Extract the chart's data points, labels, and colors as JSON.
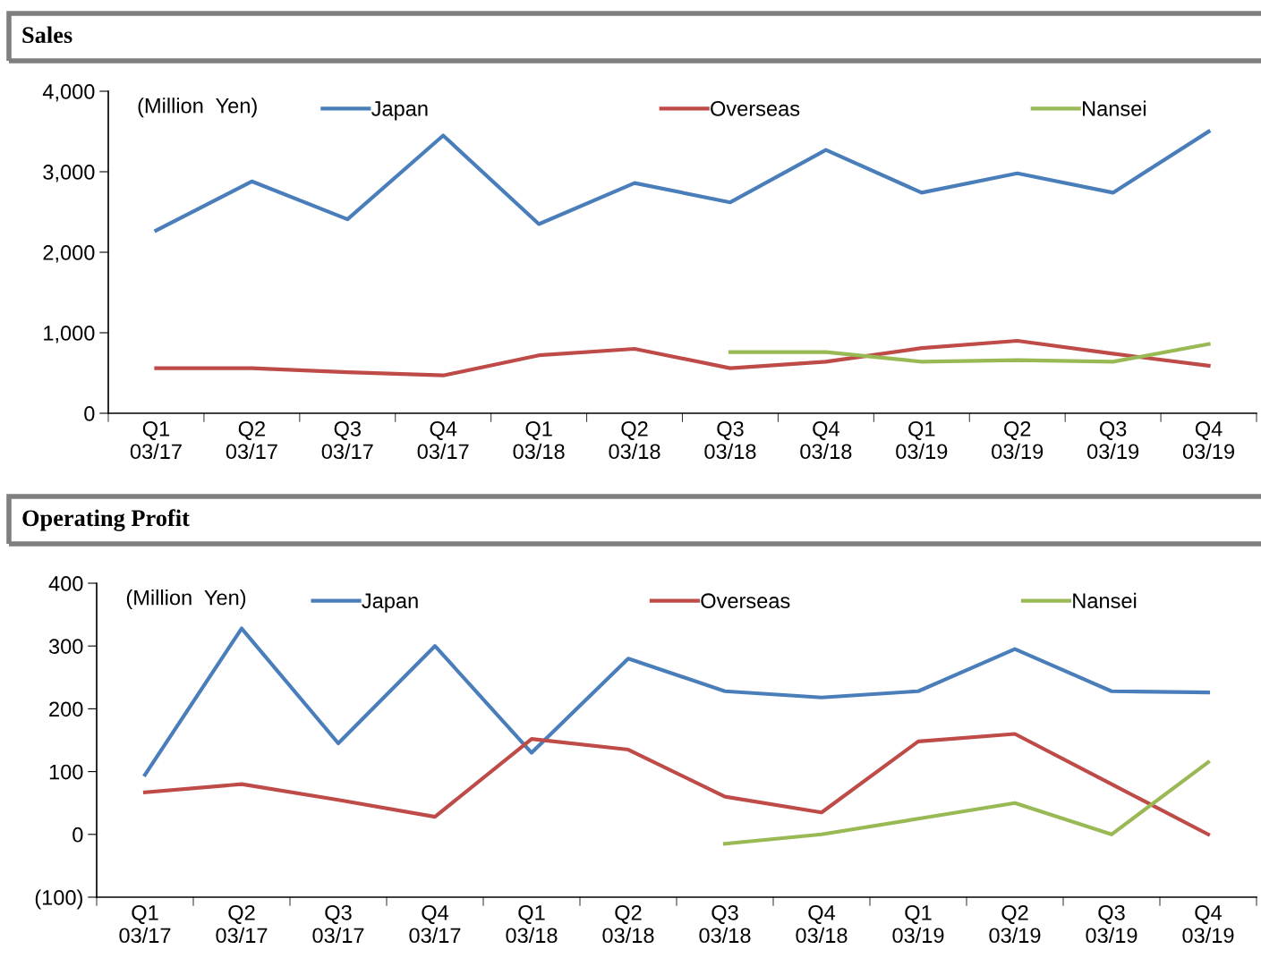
{
  "chart_data": [
    {
      "type": "line",
      "title": "Sales",
      "annotations": [
        "(Million  Yen)"
      ],
      "categories": [
        "Q1\n03/17",
        "Q2\n03/17",
        "Q3\n03/17",
        "Q4\n03/17",
        "Q1\n03/18",
        "Q2\n03/18",
        "Q3\n03/18",
        "Q4\n03/18",
        "Q1\n03/19",
        "Q2\n03/19",
        "Q3\n03/19",
        "Q4\n03/19"
      ],
      "series": [
        {
          "name": "Japan",
          "color": "#4a7ebb",
          "values": [
            2270,
            2880,
            2410,
            3450,
            2350,
            2860,
            2620,
            3270,
            2740,
            2980,
            2740,
            3500
          ]
        },
        {
          "name": "Overseas",
          "color": "#be4b48",
          "values": [
            560,
            560,
            510,
            470,
            720,
            800,
            560,
            640,
            810,
            900,
            740,
            590
          ]
        },
        {
          "name": "Nansei",
          "color": "#98b954",
          "values": [
            null,
            null,
            null,
            null,
            null,
            null,
            760,
            760,
            640,
            660,
            640,
            860
          ]
        }
      ],
      "ylim": [
        0,
        4000
      ],
      "yticks": [
        {
          "value": 0,
          "label": "0"
        },
        {
          "value": 1000,
          "label": "1,000"
        },
        {
          "value": 2000,
          "label": "2,000"
        },
        {
          "value": 3000,
          "label": "3,000"
        },
        {
          "value": 4000,
          "label": "4,000"
        }
      ],
      "grid": false,
      "legend": "top",
      "marker": "none",
      "line_style": "solid"
    },
    {
      "type": "line",
      "title": "Operating Profit",
      "annotations": [
        "(Million  Yen)"
      ],
      "categories": [
        "Q1\n03/17",
        "Q2\n03/17",
        "Q3\n03/17",
        "Q4\n03/17",
        "Q1\n03/18",
        "Q2\n03/18",
        "Q3\n03/18",
        "Q4\n03/18",
        "Q1\n03/19",
        "Q2\n03/19",
        "Q3\n03/19",
        "Q4\n03/19"
      ],
      "series": [
        {
          "name": "Japan",
          "color": "#4a7ebb",
          "values": [
            95,
            328,
            145,
            300,
            130,
            280,
            228,
            218,
            228,
            295,
            228,
            226
          ]
        },
        {
          "name": "Overseas",
          "color": "#be4b48",
          "values": [
            67,
            80,
            55,
            28,
            152,
            135,
            60,
            35,
            148,
            160,
            80,
            0
          ]
        },
        {
          "name": "Nansei",
          "color": "#98b954",
          "values": [
            null,
            null,
            null,
            null,
            null,
            null,
            -15,
            0,
            25,
            50,
            0,
            115
          ]
        }
      ],
      "ylim": [
        -100,
        400
      ],
      "yticks": [
        {
          "value": -100,
          "label": "(100)"
        },
        0,
        100,
        200,
        300,
        400
      ],
      "grid": false,
      "legend": "top",
      "marker": "none",
      "line_style": "solid"
    }
  ]
}
